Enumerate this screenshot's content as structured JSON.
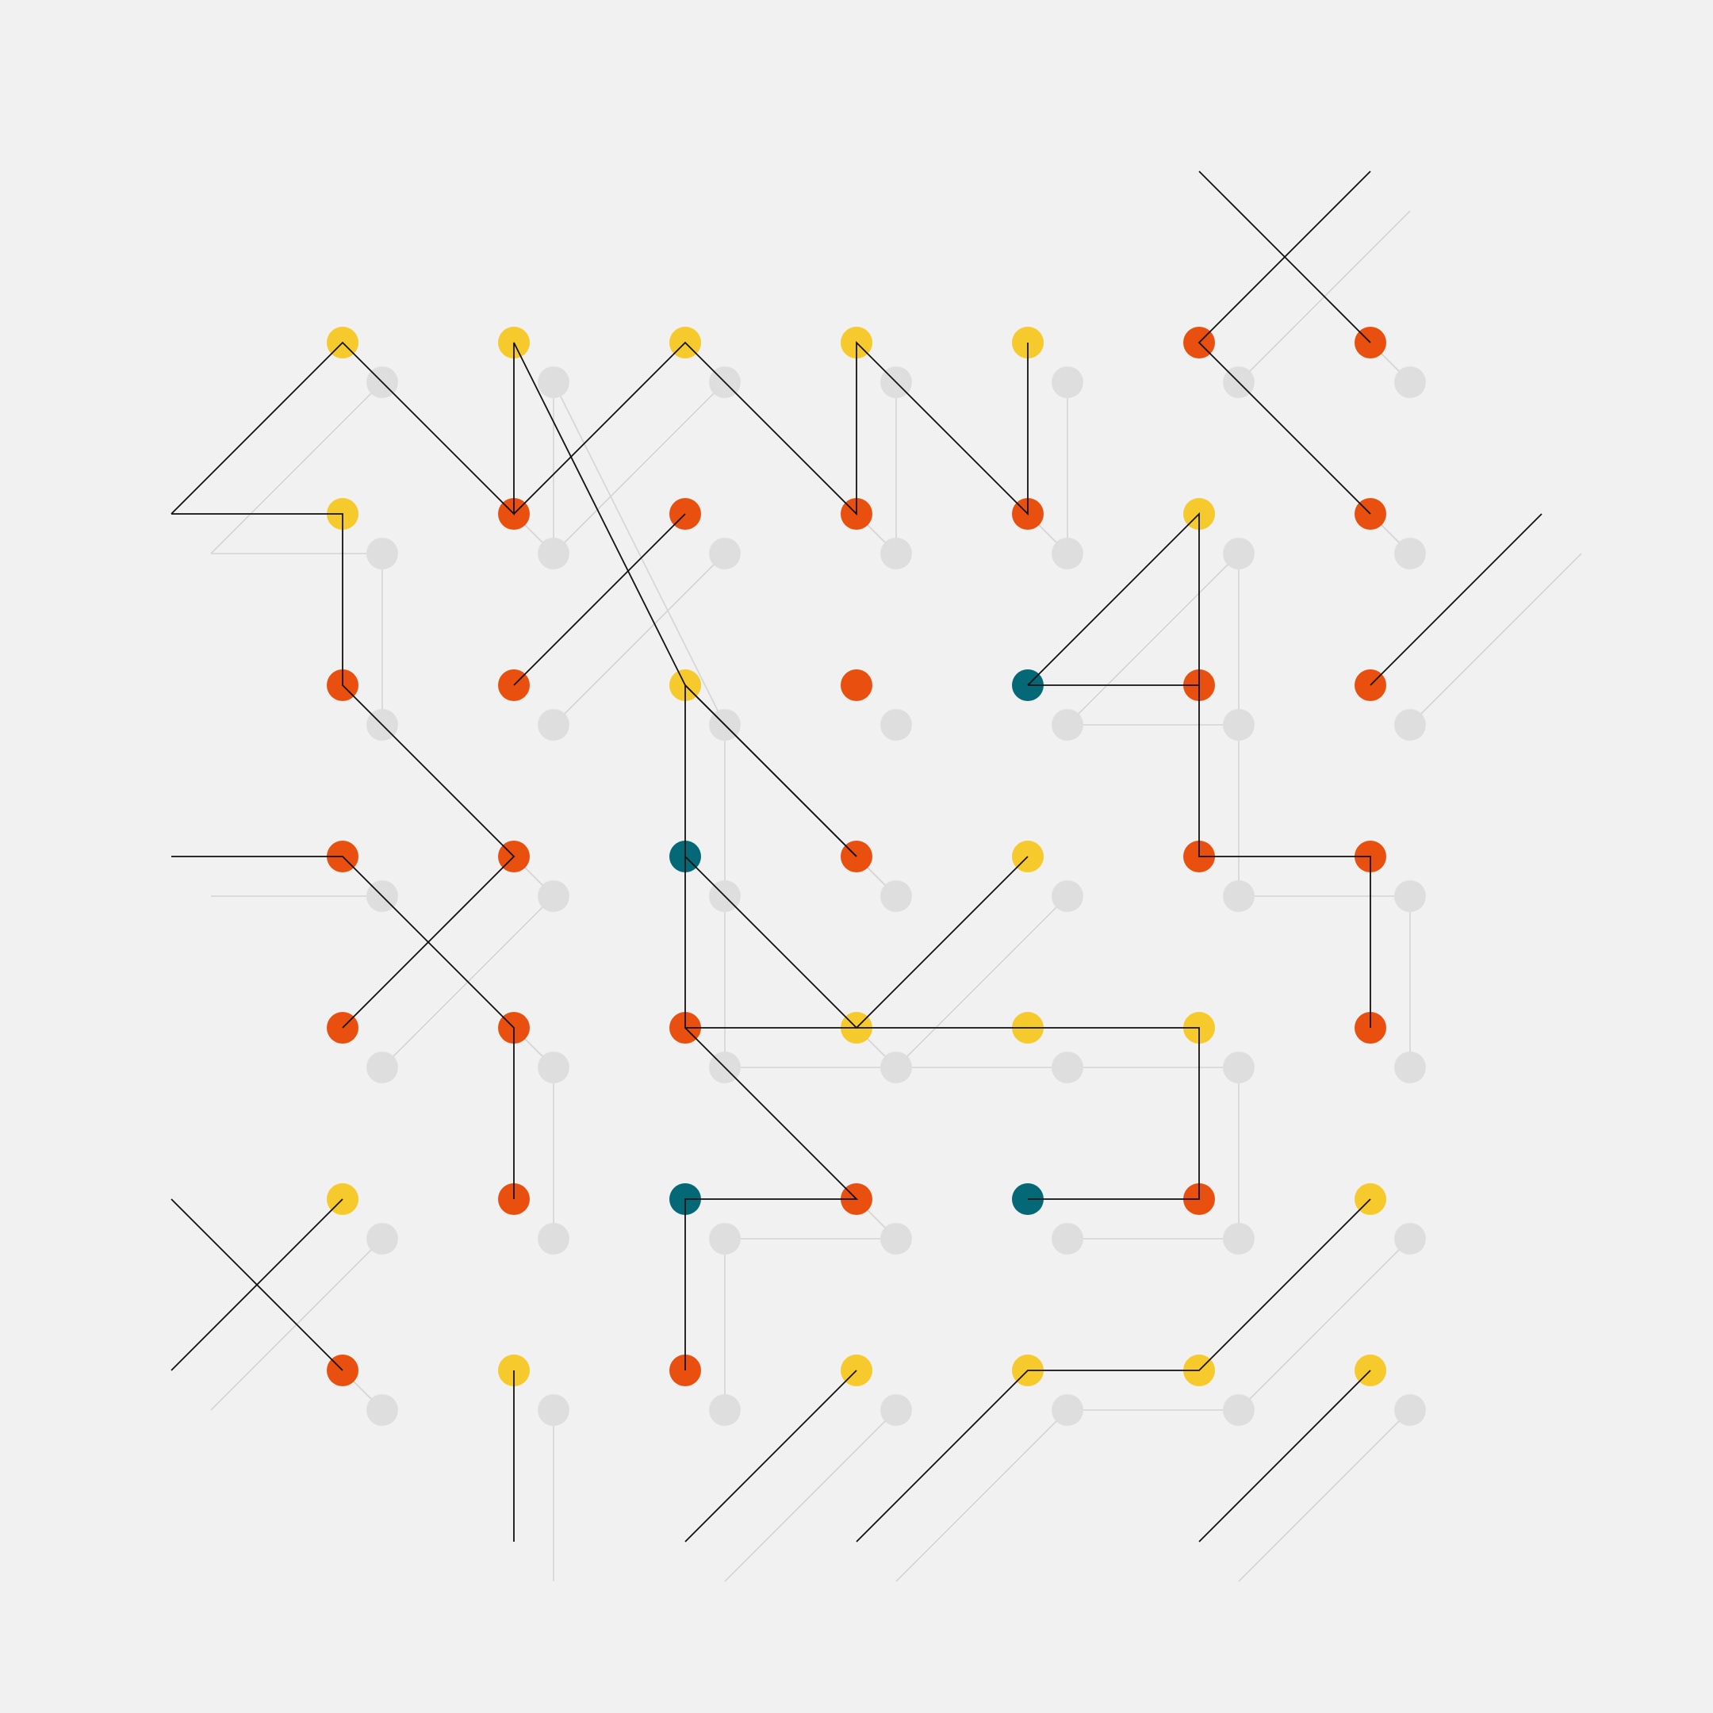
{
  "palette": {
    "background": "#f1f1f1",
    "Y": "#f6c92c",
    "O": "#e9500f",
    "T": "#046877",
    "shadow_dot": "#dedede",
    "shadow_line": "#d4d4d4",
    "line": "#111111"
  },
  "grid": {
    "columns": 7,
    "rows": 7,
    "colors": [
      [
        "Y",
        "Y",
        "Y",
        "Y",
        "Y",
        "O",
        "O"
      ],
      [
        "Y",
        "O",
        "O",
        "O",
        "O",
        "Y",
        "O"
      ],
      [
        "O",
        "O",
        "Y",
        "O",
        "T",
        "O",
        "O"
      ],
      [
        "O",
        "O",
        "T",
        "O",
        "Y",
        "O",
        "O"
      ],
      [
        "O",
        "O",
        "O",
        "Y",
        "Y",
        "Y",
        "O"
      ],
      [
        "Y",
        "O",
        "T",
        "O",
        "T",
        "O",
        "Y"
      ],
      [
        "O",
        "Y",
        "O",
        "Y",
        "Y",
        "Y",
        "Y"
      ]
    ]
  },
  "paths": [
    [
      [
        -1,
        1
      ],
      [
        0,
        0
      ],
      [
        1,
        1
      ],
      [
        1,
        0
      ],
      [
        2,
        2
      ],
      [
        3,
        3
      ]
    ],
    [
      [
        1,
        1
      ],
      [
        2,
        0
      ],
      [
        3,
        1
      ],
      [
        3,
        0
      ],
      [
        4,
        1
      ],
      [
        4,
        0
      ]
    ],
    [
      [
        -1,
        1
      ],
      [
        0,
        1
      ],
      [
        0,
        2
      ],
      [
        1,
        3
      ],
      [
        0,
        4
      ]
    ],
    [
      [
        1,
        2
      ],
      [
        2,
        1
      ]
    ],
    [
      [
        5,
        -1
      ],
      [
        6,
        0
      ]
    ],
    [
      [
        6,
        -1
      ],
      [
        5,
        0
      ],
      [
        6,
        1
      ]
    ],
    [
      [
        6,
        2
      ],
      [
        7,
        1
      ]
    ],
    [
      [
        4,
        2
      ],
      [
        5,
        1
      ],
      [
        5,
        3
      ],
      [
        6,
        3
      ],
      [
        6,
        4
      ]
    ],
    [
      [
        4,
        2
      ],
      [
        5,
        2
      ]
    ],
    [
      [
        -1,
        3
      ],
      [
        0,
        3
      ],
      [
        1,
        4
      ],
      [
        1,
        5
      ]
    ],
    [
      [
        3,
        3
      ],
      [
        2,
        2
      ],
      [
        2,
        4
      ],
      [
        3,
        5
      ],
      [
        2,
        5
      ],
      [
        2,
        6
      ]
    ],
    [
      [
        2,
        3
      ],
      [
        3,
        4
      ],
      [
        4,
        3
      ]
    ],
    [
      [
        2,
        4
      ],
      [
        5,
        4
      ],
      [
        5,
        5
      ],
      [
        4,
        5
      ]
    ],
    [
      [
        -1,
        5
      ],
      [
        0,
        6
      ]
    ],
    [
      [
        -1,
        6
      ],
      [
        0,
        5
      ]
    ],
    [
      [
        1,
        6
      ],
      [
        1,
        7
      ]
    ],
    [
      [
        2,
        7
      ],
      [
        3,
        6
      ]
    ],
    [
      [
        3,
        7
      ],
      [
        4,
        6
      ],
      [
        5,
        6
      ],
      [
        6,
        5
      ]
    ],
    [
      [
        5,
        7
      ],
      [
        6,
        6
      ]
    ]
  ]
}
